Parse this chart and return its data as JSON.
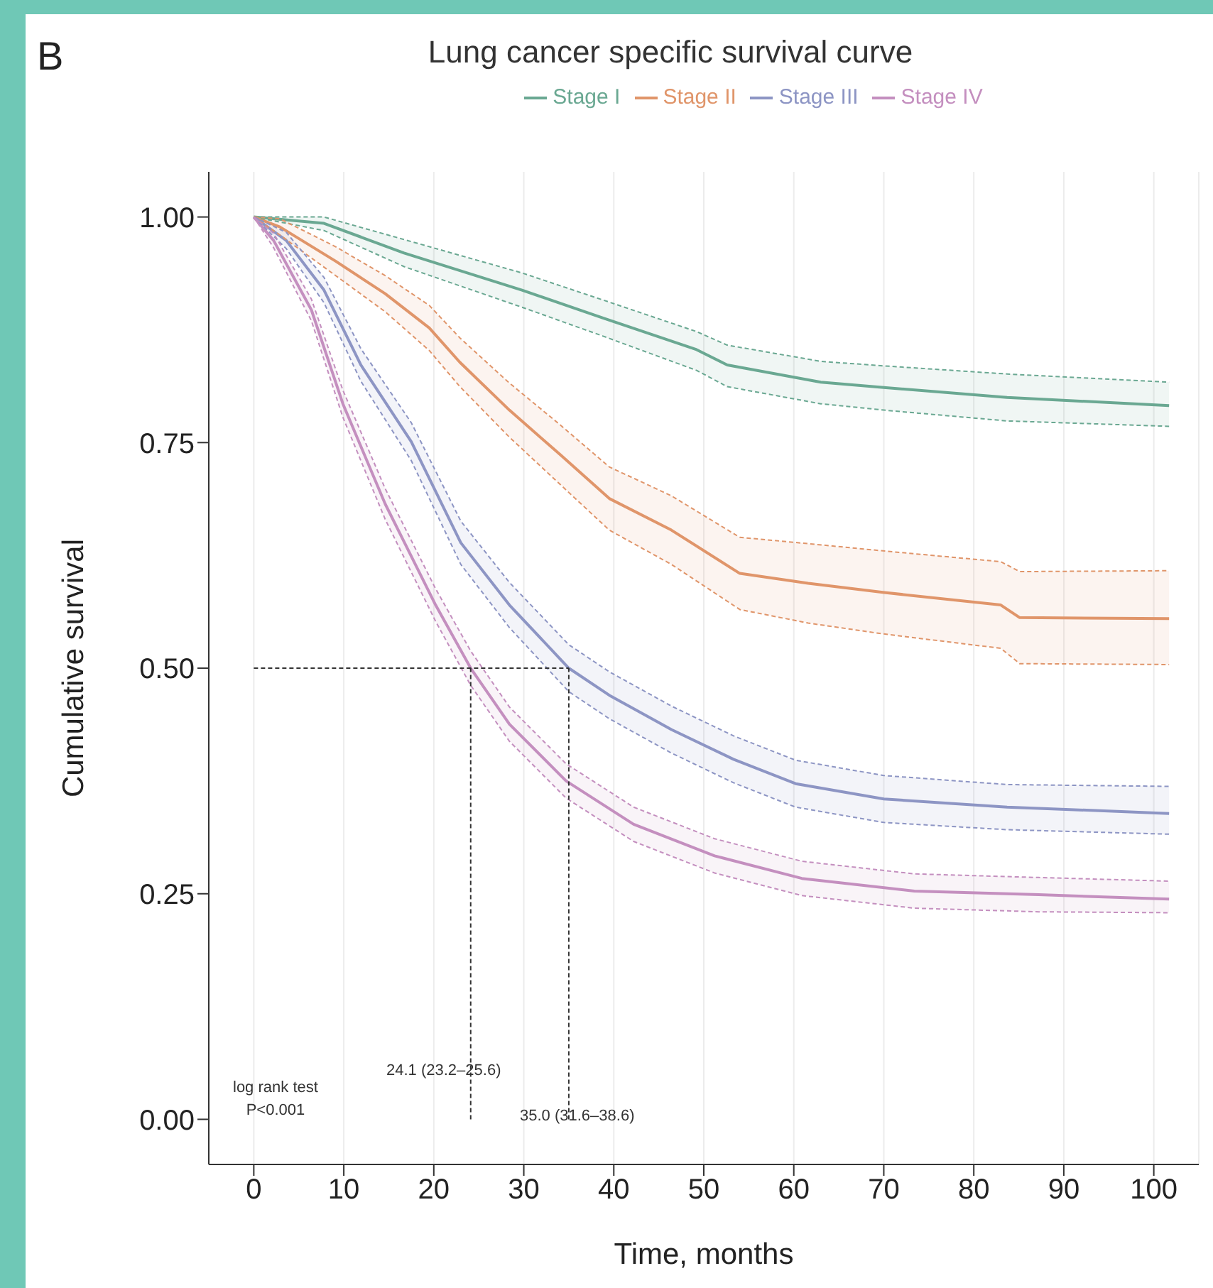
{
  "chart_data": {
    "type": "line",
    "title": "Lung cancer specific survival curve",
    "xlabel": "Time, months",
    "ylabel": "Cumulative survival",
    "xlim": [
      -5,
      105
    ],
    "xticks": [
      0,
      10,
      20,
      30,
      40,
      50,
      60,
      70,
      80,
      90,
      100
    ],
    "ylim": [
      -0.05,
      1.05
    ],
    "yticks": [
      {
        "value": 0,
        "label": "0.00"
      },
      {
        "value": 0.25,
        "label": "0.25"
      },
      {
        "value": 0.5,
        "label": "0.50"
      },
      {
        "value": 0.75,
        "label": "0.75"
      },
      {
        "value": 1,
        "label": "1.00"
      }
    ],
    "grid": "x",
    "legend": "top",
    "line_style": "solid",
    "marker": "none",
    "series": [
      {
        "name": "Stage I",
        "color": "#6aa892",
        "x": [
          0,
          7.8,
          16.7,
          29.8,
          38.8,
          49.2,
          52.6,
          63,
          70,
          83.7,
          101.7
        ],
        "values": [
          1,
          0.993,
          0.96,
          0.919,
          0.888,
          0.853,
          0.836,
          0.817,
          0.811,
          0.8,
          0.791
        ],
        "lower": [
          1,
          0.985,
          0.945,
          0.9,
          0.868,
          0.83,
          0.812,
          0.793,
          0.786,
          0.774,
          0.768
        ],
        "upper": [
          1,
          1,
          0.975,
          0.938,
          0.908,
          0.873,
          0.858,
          0.84,
          0.835,
          0.826,
          0.817
        ]
      },
      {
        "name": "Stage II",
        "color": "#e0956a",
        "x": [
          0,
          2.9,
          9.1,
          14.6,
          19.5,
          22.9,
          28.4,
          34,
          39.5,
          46.4,
          54,
          61.6,
          69.9,
          83,
          85.1,
          101.7
        ],
        "values": [
          1,
          0.989,
          0.951,
          0.915,
          0.877,
          0.839,
          0.786,
          0.737,
          0.688,
          0.653,
          0.605,
          0.594,
          0.584,
          0.57,
          0.556,
          0.555
        ],
        "lower": [
          1,
          0.98,
          0.935,
          0.895,
          0.852,
          0.812,
          0.756,
          0.704,
          0.653,
          0.615,
          0.565,
          0.55,
          0.538,
          0.522,
          0.505,
          0.504
        ],
        "upper": [
          1,
          0.998,
          0.967,
          0.935,
          0.902,
          0.866,
          0.816,
          0.77,
          0.723,
          0.691,
          0.645,
          0.638,
          0.63,
          0.618,
          0.607,
          0.608
        ]
      },
      {
        "name": "Stage III",
        "color": "#8d95c4",
        "x": [
          0,
          3.6,
          7.8,
          11.9,
          17.5,
          23,
          28.4,
          35,
          39.5,
          46.4,
          53.3,
          60.2,
          70,
          83.7,
          101.7
        ],
        "values": [
          1,
          0.974,
          0.919,
          0.836,
          0.751,
          0.639,
          0.57,
          0.5,
          0.47,
          0.432,
          0.399,
          0.372,
          0.355,
          0.346,
          0.339
        ],
        "lower": [
          1,
          0.965,
          0.905,
          0.818,
          0.73,
          0.615,
          0.545,
          0.474,
          0.444,
          0.406,
          0.373,
          0.346,
          0.329,
          0.321,
          0.316
        ],
        "upper": [
          1,
          0.983,
          0.933,
          0.854,
          0.772,
          0.663,
          0.595,
          0.526,
          0.496,
          0.458,
          0.425,
          0.398,
          0.381,
          0.371,
          0.369
        ]
      },
      {
        "name": "Stage IV",
        "color": "#c48fbf",
        "x": [
          0,
          2.2,
          6.4,
          9.9,
          14.6,
          20.2,
          24.1,
          28.4,
          34.7,
          42.2,
          51.2,
          60.9,
          73.4,
          87.2,
          101.7
        ],
        "values": [
          1,
          0.974,
          0.897,
          0.793,
          0.682,
          0.57,
          0.5,
          0.438,
          0.375,
          0.327,
          0.292,
          0.267,
          0.253,
          0.249,
          0.244
        ],
        "lower": [
          1,
          0.966,
          0.885,
          0.778,
          0.665,
          0.552,
          0.481,
          0.419,
          0.356,
          0.308,
          0.273,
          0.248,
          0.234,
          0.23,
          0.229
        ],
        "upper": [
          1,
          0.982,
          0.909,
          0.808,
          0.699,
          0.588,
          0.519,
          0.457,
          0.394,
          0.346,
          0.311,
          0.286,
          0.272,
          0.268,
          0.264
        ]
      },
      {
        "color": "#6aa892",
        "line_style": "dashed",
        "x": [
          0,
          7.8,
          16.7,
          29.8,
          38.8,
          49.2,
          52.6,
          63,
          70,
          83.7,
          101.7
        ],
        "values": [
          1,
          0.985,
          0.945,
          0.9,
          0.868,
          0.83,
          0.812,
          0.793,
          0.786,
          0.774,
          0.768
        ]
      },
      {
        "color": "#6aa892",
        "line_style": "dashed",
        "x": [
          0,
          7.8,
          16.7,
          29.8,
          38.8,
          49.2,
          52.6,
          63,
          70,
          83.7,
          101.7
        ],
        "values": [
          1,
          1,
          0.975,
          0.938,
          0.908,
          0.873,
          0.858,
          0.84,
          0.835,
          0.826,
          0.817
        ]
      },
      {
        "color": "#e0956a",
        "line_style": "dashed",
        "x": [
          0,
          2.9,
          9.1,
          14.6,
          19.5,
          22.9,
          28.4,
          34,
          39.5,
          46.4,
          54,
          61.6,
          69.9,
          83,
          85.1,
          101.7
        ],
        "values": [
          1,
          0.98,
          0.935,
          0.895,
          0.852,
          0.812,
          0.756,
          0.704,
          0.653,
          0.615,
          0.565,
          0.55,
          0.538,
          0.522,
          0.505,
          0.504
        ]
      },
      {
        "color": "#e0956a",
        "line_style": "dashed",
        "x": [
          0,
          2.9,
          9.1,
          14.6,
          19.5,
          22.9,
          28.4,
          34,
          39.5,
          46.4,
          54,
          61.6,
          69.9,
          83,
          85.1,
          101.7
        ],
        "values": [
          1,
          0.998,
          0.967,
          0.935,
          0.902,
          0.866,
          0.816,
          0.77,
          0.723,
          0.691,
          0.645,
          0.638,
          0.63,
          0.618,
          0.607,
          0.608
        ]
      },
      {
        "color": "#8d95c4",
        "line_style": "dashed",
        "x": [
          0,
          3.6,
          7.8,
          11.9,
          17.5,
          23,
          28.4,
          35,
          39.5,
          46.4,
          53.3,
          60.2,
          70,
          83.7,
          101.7
        ],
        "values": [
          1,
          0.965,
          0.905,
          0.818,
          0.73,
          0.615,
          0.545,
          0.474,
          0.444,
          0.406,
          0.373,
          0.346,
          0.329,
          0.321,
          0.316
        ]
      },
      {
        "color": "#8d95c4",
        "line_style": "dashed",
        "x": [
          0,
          3.6,
          7.8,
          11.9,
          17.5,
          23,
          28.4,
          35,
          39.5,
          46.4,
          53.3,
          60.2,
          70,
          83.7,
          101.7
        ],
        "values": [
          1,
          0.983,
          0.933,
          0.854,
          0.772,
          0.663,
          0.595,
          0.526,
          0.496,
          0.458,
          0.425,
          0.398,
          0.381,
          0.371,
          0.369
        ]
      },
      {
        "color": "#c48fbf",
        "line_style": "dashed",
        "x": [
          0,
          2.2,
          6.4,
          9.9,
          14.6,
          20.2,
          24.1,
          28.4,
          34.7,
          42.2,
          51.2,
          60.9,
          73.4,
          87.2,
          101.7
        ],
        "values": [
          1,
          0.966,
          0.885,
          0.778,
          0.665,
          0.552,
          0.481,
          0.419,
          0.356,
          0.308,
          0.273,
          0.248,
          0.234,
          0.23,
          0.229
        ]
      },
      {
        "color": "#c48fbf",
        "line_style": "dashed",
        "x": [
          0,
          2.2,
          6.4,
          9.9,
          14.6,
          20.2,
          24.1,
          28.4,
          34.7,
          42.2,
          51.2,
          60.9,
          73.4,
          87.2,
          101.7
        ],
        "values": [
          1,
          0.982,
          0.909,
          0.808,
          0.699,
          0.588,
          0.519,
          0.457,
          0.394,
          0.346,
          0.311,
          0.286,
          0.272,
          0.268,
          0.264
        ]
      }
    ],
    "ref_lines": [
      {
        "axis": "y",
        "value": 0.5,
        "color": "#333333",
        "line_style": "dashed"
      },
      {
        "axis": "x",
        "value": 24.1,
        "color": "#333333",
        "line_style": "dashed"
      },
      {
        "axis": "x",
        "value": 35.0,
        "color": "#333333",
        "line_style": "dashed"
      }
    ],
    "annotations": [
      "B",
      "log rank test\nP<0.001",
      "24.1 (23.2–25.6)",
      "35.0 (31.6–38.6)"
    ]
  }
}
